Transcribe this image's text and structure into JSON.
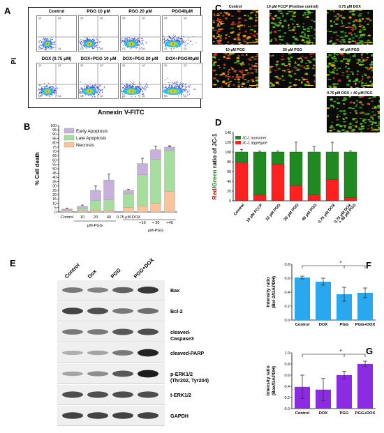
{
  "panels": {
    "A": {
      "label": "A",
      "ylabel": "PI",
      "xlabel": "Annexin V-FITC",
      "titles": [
        "Control",
        "PGG 10 μM",
        "PGG 20 μM",
        "PGG40μM",
        "DOX (0.75 μM)",
        "DOX+PGG 10 μM",
        "DOX+PGG 20 μM",
        "DOX+PGG40μM"
      ],
      "quadrants": [
        [
          "Q1",
          "Q2",
          "Q3",
          "Q4"
        ],
        [
          "Q1",
          "Q2",
          "Q3",
          "Q4"
        ],
        [
          "Q1",
          "Q2",
          "Q3",
          "Q4"
        ],
        [
          "Q1",
          "Q2",
          "Q3",
          "Q4"
        ],
        [
          "Q1",
          "Q2",
          "Q3",
          "Q4"
        ],
        [
          "Q1",
          "Q2",
          "Q3",
          "Q4"
        ],
        [
          "Q1",
          "Q2",
          "Q3",
          "Q4"
        ],
        [
          "Q1",
          "Q2",
          "Q3",
          "Q4"
        ]
      ]
    },
    "B": {
      "label": "B"
    },
    "C": {
      "label": "C",
      "titles": [
        "Control",
        "10 μM FCCP (Positive control)",
        "0.75 μM DOX",
        "10 μM PGG",
        "20 μM PGG",
        "40 μM PGG",
        "0.75 μM DOX + 40 μM PGG"
      ]
    },
    "D": {
      "label": "D"
    },
    "E": {
      "label": "E",
      "lanes": [
        "Control",
        "Dox",
        "PGG",
        "PGG+DOX"
      ],
      "rows": [
        "Bax",
        "Bcl-2",
        "cleaved-Caspase3",
        "cleaved-PARP",
        "p-ERK1/2 (Thr202, Tyr204)",
        "t-ERK1/2",
        "GAPDH"
      ]
    },
    "F": {
      "label": "F"
    },
    "G": {
      "label": "G"
    }
  },
  "chart_data": [
    {
      "id": "B",
      "type": "bar",
      "stacked": true,
      "categories": [
        "Control",
        "10",
        "20",
        "40",
        "0.75 μM-DOX",
        "+10",
        "+ 20",
        "+40"
      ],
      "group_labels": [
        "μM-PGG",
        "μM-PGG"
      ],
      "ylabel": "% Cell death",
      "ylim": [
        0,
        100
      ],
      "yticks": [
        0,
        5,
        10,
        15,
        20,
        25,
        30,
        35,
        40,
        45,
        50,
        55,
        60,
        65,
        70,
        75,
        80,
        85,
        90,
        95,
        100
      ],
      "legend_position": "top-left",
      "series": [
        {
          "name": "Necrosis",
          "color": "#f9c49a",
          "values": [
            1.5,
            1.5,
            2,
            2,
            5,
            7,
            10,
            24
          ],
          "errors": [
            0.3,
            0.5,
            1,
            1,
            1,
            2,
            2,
            6
          ]
        },
        {
          "name": "Late Apoptosis",
          "color": "#a6dea0",
          "values": [
            1,
            3,
            11,
            12,
            16,
            36,
            51,
            47
          ],
          "errors": [
            0.5,
            1,
            2,
            3,
            1,
            5,
            6,
            5
          ]
        },
        {
          "name": "Early Apoptosis",
          "color": "#c7b1dc",
          "values": [
            1,
            2,
            12,
            23,
            4,
            13,
            11,
            4
          ],
          "errors": [
            1,
            1.5,
            5,
            7,
            1,
            6,
            4,
            1.5
          ]
        }
      ]
    },
    {
      "id": "D",
      "type": "bar",
      "stacked": true,
      "categories": [
        "Control",
        "10 μM FCCP",
        "10 μM PGG",
        "20 μM PGG",
        "40 μM PGG",
        "0.75 μM DOX",
        "0.75 μM DOX + 40 μM PGG"
      ],
      "ylabel_parts": [
        "Red",
        "/",
        "Green",
        " ratio of JC-1"
      ],
      "ylim": [
        0,
        140
      ],
      "yticks": [
        0,
        20,
        40,
        60,
        80,
        100,
        120,
        140
      ],
      "legend_position": "top-left",
      "series": [
        {
          "name": "JC-1 aggregate",
          "color": "#ff2020",
          "values": [
            79,
            12,
            75,
            31,
            12,
            44,
            6
          ],
          "errors": [
            6,
            3,
            3,
            20,
            14,
            18,
            2
          ]
        },
        {
          "name": "JC-1 monomer",
          "color": "#1f8a1f",
          "values": [
            21,
            88,
            25,
            69,
            88,
            56,
            94
          ],
          "errors": [
            5,
            2,
            2,
            20,
            11,
            20,
            2
          ]
        }
      ]
    },
    {
      "id": "F",
      "type": "bar",
      "categories": [
        "Control",
        "DOX",
        "PGG",
        "PGG+DOX"
      ],
      "ylabel": "Intensity ratio\n(Bcl-2/GAPDH)",
      "ylim": [
        0,
        0.8
      ],
      "yticks": [
        0.0,
        0.2,
        0.4,
        0.6,
        0.8
      ],
      "color": "#29a8f0",
      "values": [
        0.61,
        0.55,
        0.37,
        0.39
      ],
      "errors": [
        0.02,
        0.05,
        0.1,
        0.07
      ],
      "annotation": "*"
    },
    {
      "id": "G",
      "type": "bar",
      "categories": [
        "Control",
        "DOX",
        "PGG",
        "PGG+DOX"
      ],
      "ylabel": "Intensity ratio\n(Bax/GAPDH)",
      "ylim": [
        0,
        1.0
      ],
      "yticks": [
        0.0,
        0.2,
        0.4,
        0.6,
        0.8,
        1.0
      ],
      "color": "#8b2be2",
      "values": [
        0.39,
        0.34,
        0.6,
        0.8
      ],
      "errors": [
        0.21,
        0.2,
        0.07,
        0.05
      ],
      "annotation": "*"
    }
  ]
}
